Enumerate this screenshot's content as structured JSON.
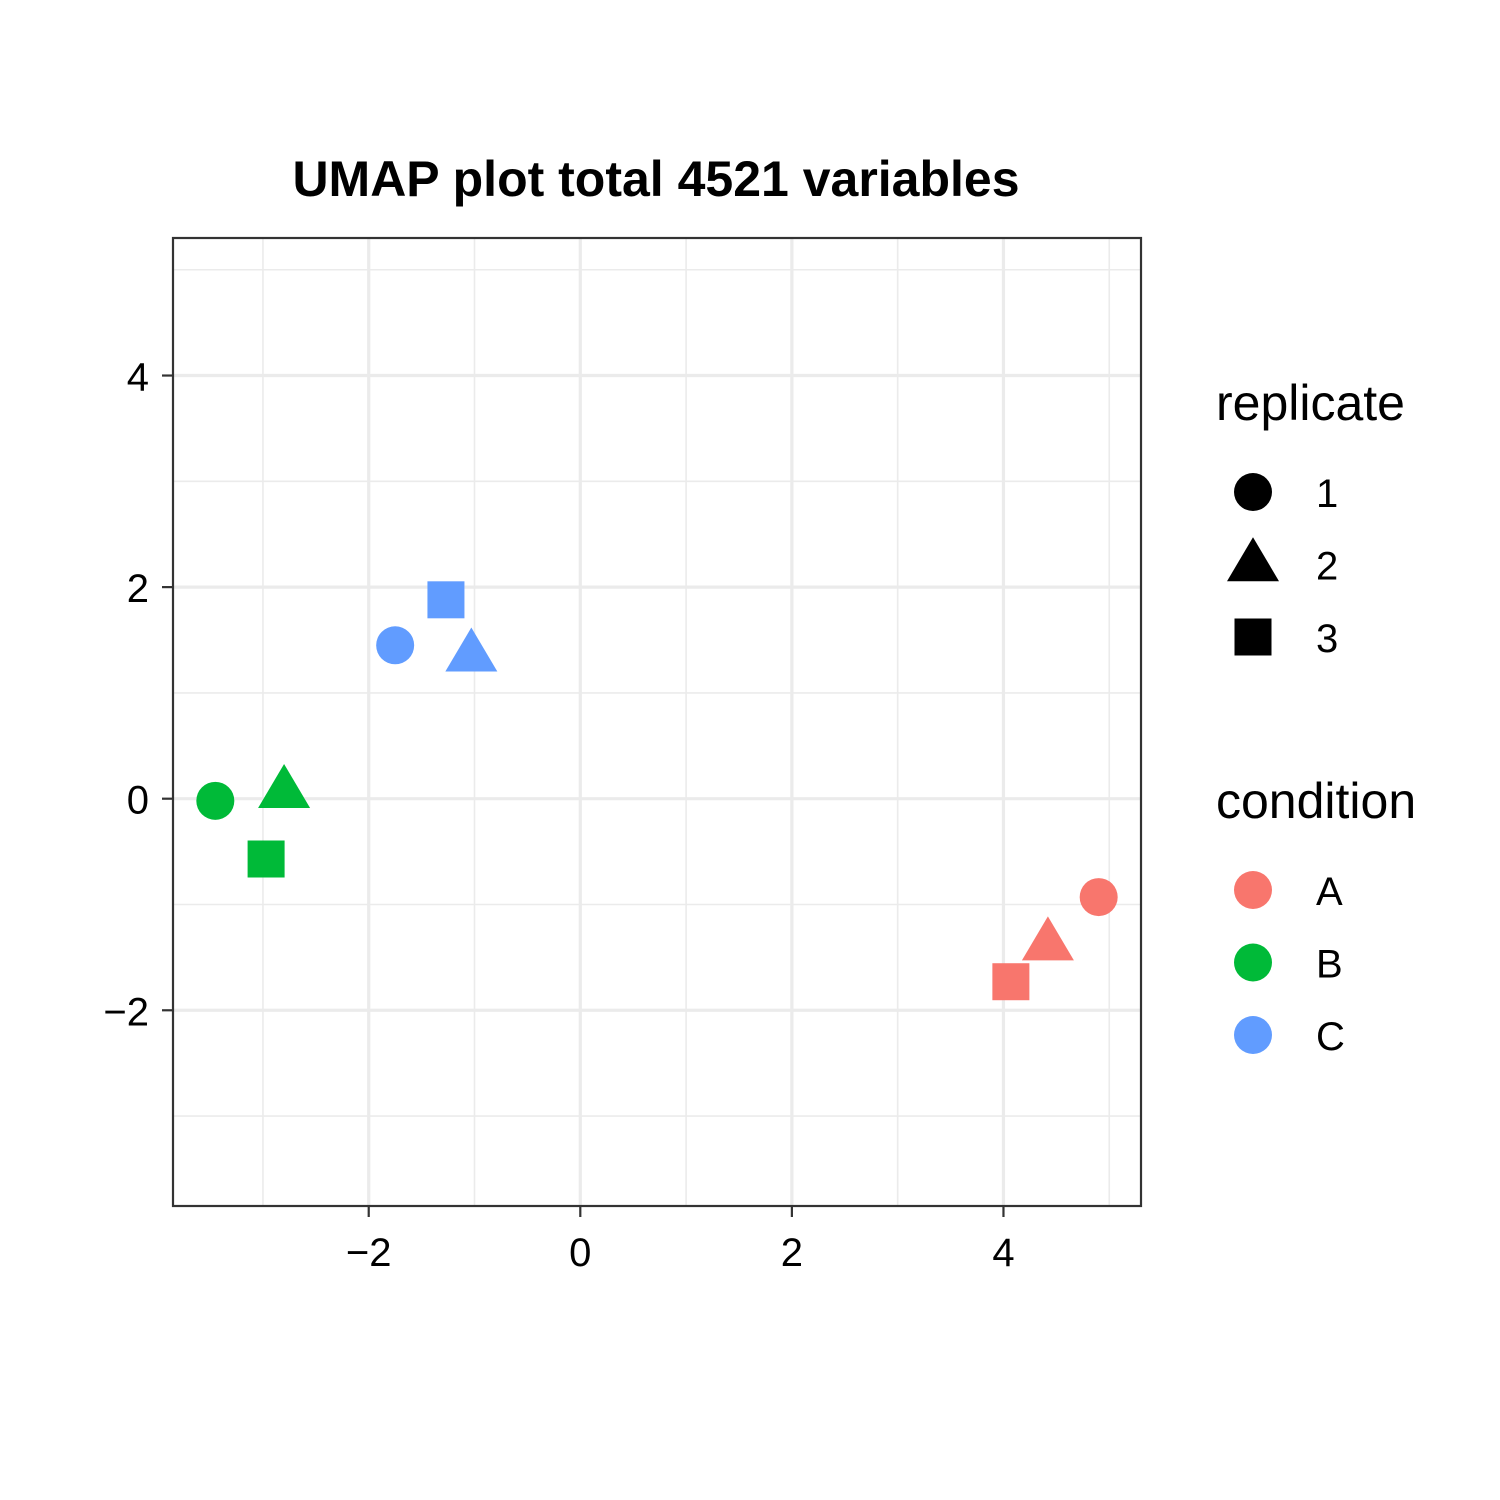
{
  "chart_data": {
    "type": "scatter",
    "title": "UMAP plot total 4521 variables",
    "xlabel": "",
    "ylabel": "",
    "xlim": [
      -3.85,
      5.3
    ],
    "ylim": [
      -3.85,
      5.3
    ],
    "x_ticks": [
      -2,
      0,
      2,
      4
    ],
    "y_ticks": [
      -2,
      0,
      2,
      4
    ],
    "x_tick_labels": [
      "−2",
      "0",
      "2",
      "4"
    ],
    "y_tick_labels": [
      "−2",
      "0",
      "2",
      "4"
    ],
    "grid": true,
    "legend_position": "right",
    "colors": {
      "A": "#F8766D",
      "B": "#00BA38",
      "C": "#619CFF"
    },
    "shapes": {
      "1": "circle",
      "2": "triangle",
      "3": "square"
    },
    "legends": [
      {
        "title": "replicate",
        "kind": "shape",
        "items": [
          {
            "label": "1",
            "shape": "circle"
          },
          {
            "label": "2",
            "shape": "triangle"
          },
          {
            "label": "3",
            "shape": "square"
          }
        ]
      },
      {
        "title": "condition",
        "kind": "color",
        "items": [
          {
            "label": "A",
            "color": "#F8766D"
          },
          {
            "label": "B",
            "color": "#00BA38"
          },
          {
            "label": "C",
            "color": "#619CFF"
          }
        ]
      }
    ],
    "points": [
      {
        "condition": "A",
        "replicate": "1",
        "x": 4.9,
        "y": -0.93
      },
      {
        "condition": "A",
        "replicate": "2",
        "x": 4.42,
        "y": -1.37
      },
      {
        "condition": "A",
        "replicate": "3",
        "x": 4.07,
        "y": -1.73
      },
      {
        "condition": "B",
        "replicate": "1",
        "x": -3.45,
        "y": -0.02
      },
      {
        "condition": "B",
        "replicate": "2",
        "x": -2.8,
        "y": 0.07
      },
      {
        "condition": "B",
        "replicate": "3",
        "x": -2.97,
        "y": -0.57
      },
      {
        "condition": "C",
        "replicate": "1",
        "x": -1.75,
        "y": 1.45
      },
      {
        "condition": "C",
        "replicate": "2",
        "x": -1.03,
        "y": 1.36
      },
      {
        "condition": "C",
        "replicate": "3",
        "x": -1.27,
        "y": 1.88
      }
    ]
  }
}
